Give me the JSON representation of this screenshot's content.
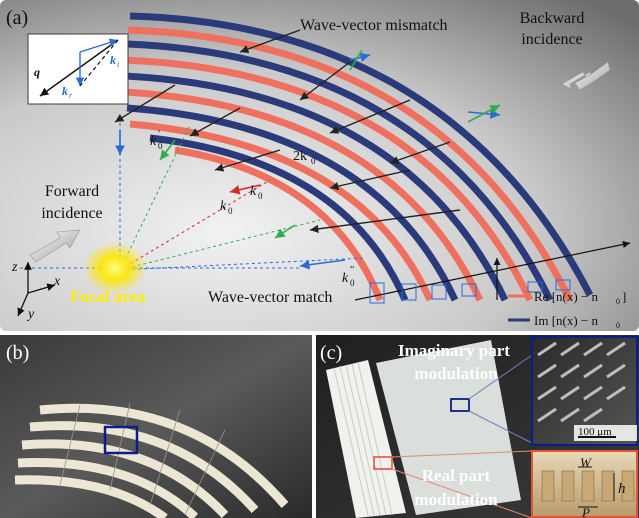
{
  "panel_a": {
    "label": "(a)",
    "wave_vector_mismatch": "Wave-vector mismatch",
    "backward_incidence": [
      "Backward",
      "incidence"
    ],
    "forward_incidence": [
      "Forward",
      "incidence"
    ],
    "focal_area": "Focal area",
    "wave_vector_match": "Wave-vector match",
    "inset": {
      "q": "q",
      "k_i": "k",
      "k_i_sub": "i",
      "k_r": "k",
      "k_r_sub": "r"
    },
    "k0_prime": "k",
    "k0_prime_sub": "0",
    "k0_prime_sup": "′",
    "two_k0": "2k",
    "two_k0_sub": "0",
    "k0_red": "k",
    "k0_red_sub": "0",
    "k0_black": "k",
    "k0_black_sub": "0",
    "k0_dprime": "k",
    "k0_dprime_sub": "0",
    "k0_dprime_sup": "″",
    "axes": {
      "z": "z",
      "x": "x",
      "y": "y"
    },
    "legend": [
      {
        "text": "Re [n(x) − n",
        "sub": "0",
        "end": "]",
        "color": "#f07060"
      },
      {
        "text": "Im [n(x) − n",
        "sub": "0",
        "end": "",
        "color": "#2b3a7a"
      }
    ]
  },
  "panel_b": {
    "label": "(b)"
  },
  "panel_c": {
    "label": "(c)",
    "imaginary_label": [
      "Imaginary part",
      "modulation"
    ],
    "real_label": [
      "Real part",
      "modulation"
    ],
    "scale_bar": "100 μm",
    "w": "W",
    "h": "h",
    "p": "P"
  },
  "colors": {
    "red_strip": "#f07060",
    "blue_strip": "#2b3a7a",
    "arrow_blue": "#2a6bd6",
    "arrow_green": "#2fae4a",
    "arrow_red": "#d62a2a",
    "focal": "#fff36a"
  }
}
